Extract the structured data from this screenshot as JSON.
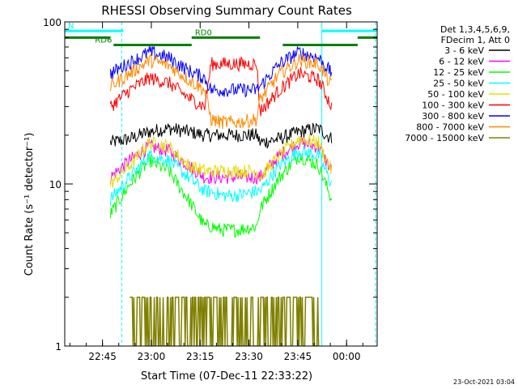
{
  "chart_data": {
    "type": "line",
    "title": "RHESSI Observing Summary Count Rates",
    "xlabel": "Start Time (07-Dec-11 22:33:22)",
    "ylabel": "Count Rate (s⁻¹ detector⁻¹)",
    "x_unit": "minutes after 22:33:22 UT",
    "xlim": [
      0,
      96
    ],
    "ylim": [
      1,
      100
    ],
    "y_scale": "log",
    "x_ticks": [
      {
        "x": 11.6,
        "label": "22:45"
      },
      {
        "x": 26.6,
        "label": "23:00"
      },
      {
        "x": 41.6,
        "label": "23:15"
      },
      {
        "x": 56.6,
        "label": "23:30"
      },
      {
        "x": 71.6,
        "label": "23:45"
      },
      {
        "x": 86.6,
        "label": "00:00"
      }
    ],
    "y_ticks": [
      {
        "value": 1,
        "label": "1"
      },
      {
        "value": 10,
        "label": "10"
      },
      {
        "value": 100,
        "label": "100"
      }
    ],
    "legend_header": [
      "Det 1,3,4,5,6,9,",
      "FDecim 1, Att 0"
    ],
    "legend_position": "right",
    "series": [
      {
        "name": "3 - 6 keV",
        "color": "#000000",
        "x": [
          14,
          20,
          26,
          32,
          38,
          43,
          45,
          48,
          53,
          59,
          60,
          66,
          72,
          78,
          82
        ],
        "values": [
          18,
          19,
          21,
          22,
          21,
          20,
          20,
          20,
          20,
          20,
          18,
          19,
          21,
          22,
          19
        ]
      },
      {
        "name": "6 - 12 keV",
        "color": "#ff00ff",
        "x": [
          14,
          20,
          26,
          32,
          38,
          43,
          45,
          48,
          53,
          59,
          60,
          66,
          72,
          78,
          82
        ],
        "values": [
          11,
          14,
          17,
          16,
          13,
          11,
          11,
          11,
          11,
          11,
          11,
          15,
          18,
          17,
          12
        ]
      },
      {
        "name": "12 - 25 keV",
        "color": "#00ff00",
        "x": [
          14,
          20,
          26,
          32,
          38,
          43,
          45,
          48,
          53,
          59,
          60,
          66,
          72,
          78,
          82
        ],
        "values": [
          6.5,
          10,
          14,
          12,
          8,
          5.5,
          5.5,
          5.2,
          5.2,
          5.5,
          7,
          11,
          15,
          13,
          8
        ]
      },
      {
        "name": "25 - 50 keV",
        "color": "#00ffff",
        "x": [
          14,
          20,
          26,
          32,
          38,
          43,
          45,
          48,
          53,
          59,
          60,
          66,
          72,
          78,
          82
        ],
        "values": [
          8,
          11,
          15,
          14,
          11,
          9,
          9,
          8.5,
          8.5,
          9,
          9,
          13,
          16,
          15,
          10
        ]
      },
      {
        "name": "50 - 100 keV",
        "color": "#e0e000",
        "x": [
          14,
          20,
          26,
          32,
          38,
          43,
          45,
          48,
          53,
          59,
          60,
          66,
          72,
          78,
          82
        ],
        "values": [
          10,
          13,
          18,
          17,
          13,
          12,
          12,
          12,
          12,
          12,
          11,
          15,
          19,
          18,
          12
        ]
      },
      {
        "name": "100 - 300 keV",
        "color": "#ff0000",
        "x": [
          14,
          20,
          26,
          32,
          38,
          43,
          45,
          48,
          53,
          59,
          60,
          66,
          72,
          78,
          82
        ],
        "values": [
          30,
          38,
          45,
          42,
          34,
          30,
          55,
          55,
          55,
          55,
          28,
          38,
          48,
          44,
          30
        ]
      },
      {
        "name": "300 - 800 keV",
        "color": "#0000ff",
        "x": [
          14,
          20,
          26,
          32,
          38,
          43,
          45,
          48,
          53,
          59,
          60,
          66,
          72,
          78,
          82
        ],
        "values": [
          48,
          56,
          65,
          60,
          50,
          45,
          38,
          38,
          38,
          38,
          40,
          55,
          65,
          60,
          48
        ]
      },
      {
        "name": "800 - 7000 keV",
        "color": "#ff8800",
        "x": [
          14,
          20,
          26,
          32,
          38,
          43,
          45,
          48,
          53,
          59,
          60,
          66,
          72,
          78,
          82
        ],
        "values": [
          40,
          48,
          58,
          54,
          44,
          38,
          25,
          24,
          24,
          25,
          33,
          48,
          58,
          55,
          40
        ]
      },
      {
        "name": "7000 - 15000 keV",
        "color": "#808000",
        "x": [
          20,
          22,
          24,
          26,
          28,
          30,
          32,
          66,
          68,
          70,
          72,
          74,
          76,
          78
        ],
        "values": [
          1.5,
          2,
          1.5,
          2,
          1.5,
          2,
          1.5,
          1.5,
          2,
          1.5,
          2,
          1.5,
          2,
          1.5
        ]
      }
    ],
    "annotations": [
      {
        "label": "N",
        "color": "#00ffff",
        "x_start": 0,
        "x_end": 18,
        "y": 88
      },
      {
        "label": "",
        "color": "#00ffff",
        "x_start": 79,
        "x_end": 96,
        "y": 88
      },
      {
        "label": "RD0",
        "color": "#008000",
        "x_start": 39,
        "x_end": 60,
        "y": 80
      },
      {
        "label": "",
        "color": "#008000",
        "x_start": 67,
        "x_end": 90,
        "y": 72
      },
      {
        "label": "",
        "color": "#008000",
        "x_start": 90,
        "x_end": 96,
        "y": 80
      },
      {
        "label": "RD6",
        "color": "#008000",
        "x_start": 15,
        "x_end": 39,
        "y": 72
      },
      {
        "label": "",
        "color": "#008000",
        "x_start": 0,
        "x_end": 14,
        "y": 80
      }
    ],
    "vlines": [
      {
        "x": 0,
        "color": "#00ffff",
        "style": "solid"
      },
      {
        "x": 17.5,
        "color": "#00ffff",
        "style": "dashed"
      },
      {
        "x": 79,
        "color": "#00ffff",
        "style": "solid"
      },
      {
        "x": 95.5,
        "color": "#00ffff",
        "style": "dashed"
      }
    ]
  },
  "timestamp": "23-Oct-2021 03:04"
}
